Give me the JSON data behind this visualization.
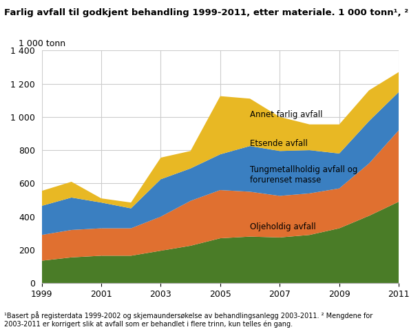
{
  "years": [
    1999,
    2000,
    2001,
    2002,
    2003,
    2004,
    2005,
    2006,
    2007,
    2008,
    2009,
    2010,
    2011
  ],
  "oljeholdig": [
    135,
    155,
    165,
    165,
    195,
    225,
    270,
    280,
    275,
    290,
    330,
    405,
    490
  ],
  "tungmetall": [
    155,
    165,
    165,
    165,
    205,
    270,
    290,
    270,
    250,
    250,
    240,
    315,
    430
  ],
  "etsende": [
    175,
    195,
    155,
    120,
    225,
    195,
    215,
    275,
    270,
    260,
    210,
    255,
    230
  ],
  "annet": [
    90,
    95,
    25,
    35,
    130,
    105,
    350,
    285,
    205,
    155,
    175,
    185,
    120
  ],
  "colors": {
    "oljeholdig": "#4a7c27",
    "tungmetall": "#e07030",
    "etsende": "#3a7fc1",
    "annet": "#e8b824"
  },
  "title": "Farlig avfall til godkjent behandling 1999-2011, etter materiale. 1 000 tonn¹, ²",
  "ylabel": "1 000 tonn",
  "ylim": [
    0,
    1400
  ],
  "yticks": [
    0,
    200,
    400,
    600,
    800,
    1000,
    1200,
    1400
  ],
  "xticks": [
    1999,
    2001,
    2003,
    2005,
    2007,
    2009,
    2011
  ],
  "label_oljeholdig": "Oljeholdig avfall",
  "label_tungmetall": "Tungmetallholdig avfall og\nforurenset masse",
  "label_etsende": "Etsende avfall",
  "label_annet": "Annet farlig avfall",
  "footnote": "¹Basert på registerdata 1999-2002 og skjemaundersøkelse av behandlingsanlegg 2003-2011. ² Mengdene for\n2003-2011 er korrigert slik at avfall som er behandlet i flere trinn, kun telles én gang.",
  "background_color": "#ffffff"
}
